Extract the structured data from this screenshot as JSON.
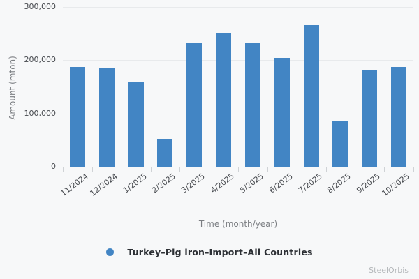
{
  "watermark": "SteelOrbis",
  "colors": {
    "background": "#f7f8f9",
    "bar": "#4285c4",
    "gridline": "#e8eaec",
    "axis_line": "#cfd2d5"
  },
  "chart_data": {
    "type": "bar",
    "title": "",
    "categories": [
      "11/2024",
      "12/2024",
      "1/2025",
      "2/2025",
      "3/2025",
      "4/2025",
      "5/2025",
      "6/2025",
      "7/2025",
      "8/2025",
      "9/2025",
      "10/2025"
    ],
    "values": [
      187000,
      185000,
      158000,
      52000,
      233000,
      252000,
      233000,
      204000,
      266000,
      85000,
      182000,
      188000
    ],
    "legend": "Turkey–Pig iron–Import–All Countries",
    "xlabel": "Time (month/year)",
    "ylabel": "Amount (mton)",
    "ylim": [
      0,
      300000
    ],
    "y_ticks": [
      {
        "value": 0,
        "label": "0"
      },
      {
        "value": 100000,
        "label": "100,000"
      },
      {
        "value": 200000,
        "label": "200,000"
      },
      {
        "value": 300000,
        "label": "300,000"
      }
    ],
    "grid": true,
    "legend_position": "bottom",
    "bar_color": "#4285c4"
  }
}
